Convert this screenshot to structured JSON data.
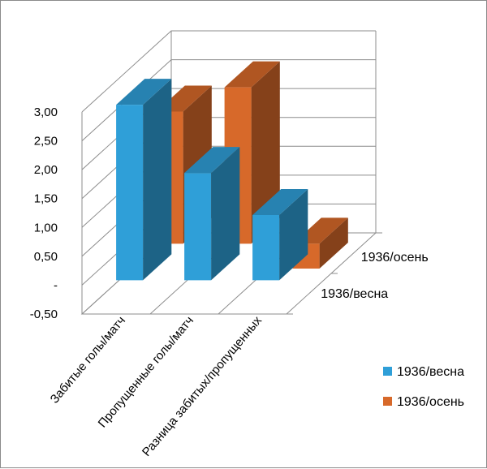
{
  "chart_data": {
    "type": "bar",
    "title": "",
    "xlabel": "",
    "ylabel": "",
    "categories": [
      "Забитые голы/матч",
      "Пропущенные голы/матч",
      "Разница забитых/пропущенных"
    ],
    "series": [
      {
        "name": "1936/весна",
        "values": [
          3.04,
          1.86,
          1.13
        ],
        "color": "#2f9fd8"
      },
      {
        "name": "1936/осень",
        "values": [
          2.29,
          2.71,
          -0.43
        ],
        "color": "#d7692a"
      }
    ],
    "ylim": [
      -0.5,
      3.0
    ],
    "yticks": [
      "-0,50",
      "-",
      "0,50",
      "1,00",
      "1,50",
      "2,00",
      "2,50",
      "3,00"
    ],
    "depth_labels": [
      "1936/весна",
      "1936/осень"
    ],
    "legend": {
      "position": "right",
      "entries": [
        "1936/весна",
        "1936/осень"
      ]
    },
    "grid": true
  }
}
